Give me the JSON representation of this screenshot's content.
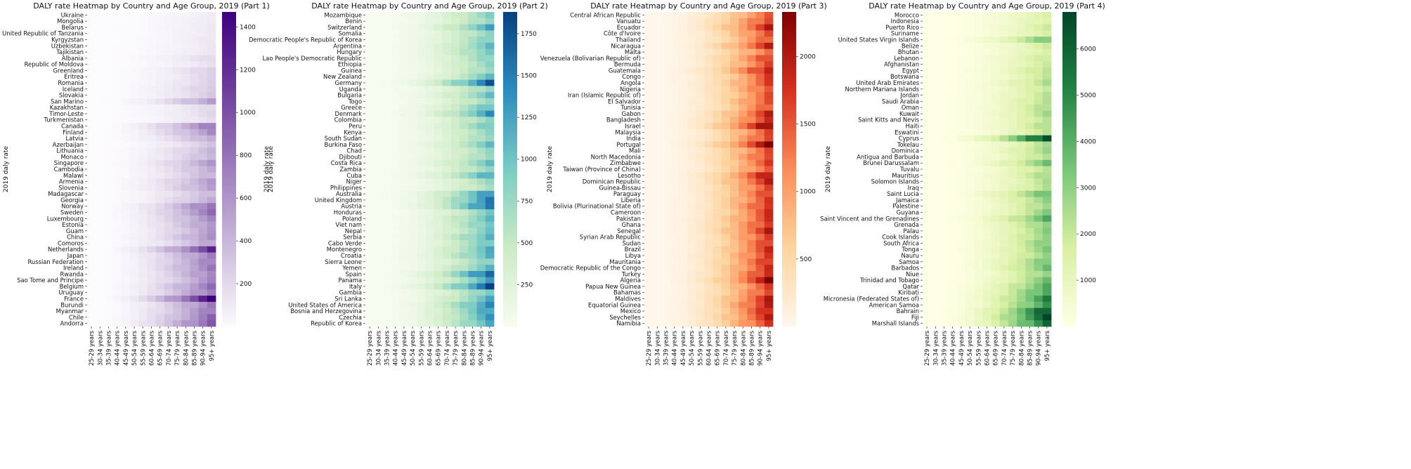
{
  "chart_data": [
    {
      "type": "heatmap",
      "title": "DALY rate Heatmap by Country and Age Group, 2019 (Part 1)",
      "ylabel": "2019 daly rate",
      "colorbar_label": "2019 daly rate",
      "palette": "purples",
      "colors": [
        "#fcfbfd",
        "#3f007d"
      ],
      "vmin": 0,
      "vmax": 1470,
      "colorbar_ticks": [
        "200",
        "400",
        "600",
        "800",
        "1000",
        "1200",
        "1400"
      ],
      "x": [
        "25-29 years",
        "30-34 years",
        "35-39 years",
        "40-44 years",
        "45-49 years",
        "50-54 years",
        "55-59 years",
        "60-64 years",
        "65-69 years",
        "70-74 years",
        "75-79 years",
        "80-84 years",
        "85-89 years",
        "90-94 years",
        "95+ years"
      ],
      "rows": [
        "Ukraine",
        "Mongolia",
        "Belarus",
        "United Republic of Tanzania",
        "Kyrgyzstan",
        "Uzbekistan",
        "Tajikistan",
        "Albania",
        "Republic of Moldova",
        "Greenland",
        "Eritrea",
        "Romania",
        "Iceland",
        "Slovakia",
        "San Marino",
        "Kazakhstan",
        "Timor-Leste",
        "Turkmenistan",
        "Canada",
        "Finland",
        "Latvia",
        "Azerbaijan",
        "Lithuania",
        "Monaco",
        "Singapore",
        "Cambodia",
        "Malawi",
        "Armenia",
        "Slovenia",
        "Madagascar",
        "Georgia",
        "Norway",
        "Sweden",
        "Luxembourg",
        "Estonia",
        "Guam",
        "China",
        "Comoros",
        "Netherlands",
        "Japan",
        "Russian Federation",
        "Ireland",
        "Rwanda",
        "Sao Tome and Principe",
        "Belgium",
        "Uruguay",
        "France",
        "Burundi",
        "Myanmar",
        "Chile",
        "Andorra"
      ],
      "row_max": [
        90,
        100,
        110,
        110,
        120,
        120,
        130,
        200,
        150,
        260,
        230,
        260,
        300,
        280,
        560,
        200,
        210,
        180,
        780,
        640,
        480,
        300,
        420,
        420,
        560,
        480,
        420,
        560,
        560,
        400,
        460,
        820,
        780,
        680,
        620,
        560,
        640,
        520,
        1200,
        760,
        740,
        760,
        700,
        640,
        840,
        780,
        1460,
        760,
        760,
        860,
        980
      ]
    },
    {
      "type": "heatmap",
      "title": "DALY rate Heatmap by Country and Age Group, 2019 (Part 2)",
      "ylabel": "2019 daly rate",
      "colorbar_label": "",
      "palette": "gnbu",
      "colors": [
        "#f7fcf0",
        "#ccebc5",
        "#7bccc4",
        "#2b8cbe",
        "#084081"
      ],
      "vmin": 0,
      "vmax": 1880,
      "colorbar_ticks": [
        "250",
        "500",
        "750",
        "1000",
        "1250",
        "1500",
        "1750"
      ],
      "x": [
        "25-29 years",
        "30-34 years",
        "35-39 years",
        "40-44 years",
        "45-49 years",
        "50-54 years",
        "55-59 years",
        "60-64 years",
        "65-69 years",
        "70-74 years",
        "75-79 years",
        "80-84 years",
        "85-89 years",
        "90-94 years",
        "95+ years"
      ],
      "rows": [
        "Mozambique",
        "Benin",
        "Switzerland",
        "Somalia",
        "Democratic People's Republic of Korea",
        "Argentina",
        "Hungary",
        "Lao People's Democratic Republic",
        "Ethiopia",
        "Guinea",
        "New Zealand",
        "Germany",
        "Uganda",
        "Bulgaria",
        "Togo",
        "Greece",
        "Denmark",
        "Colombia",
        "Peru",
        "Kenya",
        "South Sudan",
        "Burkina Faso",
        "Chad",
        "Djibouti",
        "Costa Rica",
        "Zambia",
        "Cuba",
        "Niger",
        "Philippines",
        "Australia",
        "United Kingdom",
        "Austria",
        "Honduras",
        "Poland",
        "Viet nam",
        "Nepal",
        "Serbia",
        "Cabo Verde",
        "Montenegro",
        "Croatia",
        "Sierra Leone",
        "Yemen",
        "Spain",
        "Panama",
        "Italy",
        "Gambia",
        "Sri Lanka",
        "United States of America",
        "Bosnia and Herzegovina",
        "Czechia",
        "Republic of Korea"
      ],
      "row_max": [
        900,
        820,
        1200,
        840,
        900,
        1050,
        1000,
        880,
        820,
        780,
        1000,
        1750,
        820,
        1000,
        780,
        1050,
        1350,
        850,
        1000,
        820,
        800,
        1000,
        800,
        800,
        1000,
        820,
        1200,
        760,
        700,
        1400,
        1500,
        1600,
        900,
        1100,
        1050,
        950,
        1150,
        1000,
        1150,
        1200,
        900,
        1100,
        1700,
        1200,
        1850,
        1000,
        1150,
        1450,
        1300,
        1300,
        1250
      ]
    },
    {
      "type": "heatmap",
      "title": "DALY rate Heatmap by Country and Age Group, 2019 (Part 3)",
      "ylabel": "2019 daly rate",
      "colorbar_label": "",
      "palette": "orrd",
      "colors": [
        "#fff7ec",
        "#fdd49e",
        "#fc8d59",
        "#d7301f",
        "#7f0000"
      ],
      "vmin": 0,
      "vmax": 2330,
      "colorbar_ticks": [
        "500",
        "1000",
        "1500",
        "2000"
      ],
      "x": [
        "25-29 years",
        "30-34 years",
        "35-39 years",
        "40-44 years",
        "45-49 years",
        "50-54 years",
        "55-59 years",
        "60-64 years",
        "65-69 years",
        "70-74 years",
        "75-79 years",
        "80-84 years",
        "85-89 years",
        "90-94 years",
        "95+ years"
      ],
      "rows": [
        "Central African Republic",
        "Vanuatu",
        "Ecuador",
        "Côte d'Ivoire",
        "Thailand",
        "Nicaragua",
        "Malta",
        "Venezuela (Bolivarian Republic of)",
        "Bermuda",
        "Guatemala",
        "Congo",
        "Angola",
        "Nigeria",
        "Iran (Islamic Republic of)",
        "El Salvador",
        "Tunisia",
        "Gabon",
        "Bangladesh",
        "Israel",
        "Malaysia",
        "India",
        "Portugal",
        "Mali",
        "North Macedonia",
        "Zimbabwe",
        "Taiwan (Province of China)",
        "Lesotho",
        "Dominican Republic",
        "Guinea-Bissau",
        "Paraguay",
        "Liberia",
        "Bolivia (Plurinational State of)",
        "Cameroon",
        "Pakistan",
        "Ghana",
        "Senegal",
        "Syrian Arab Republic",
        "Sudan",
        "Brazil",
        "Libya",
        "Mauritania",
        "Democratic Republic of the Congo",
        "Turkey",
        "Algeria",
        "Papua New Guinea",
        "Bahamas",
        "Maldives",
        "Equatorial Guinea",
        "Mexico",
        "Seychelles",
        "Namibia"
      ],
      "row_max": [
        1500,
        1700,
        1900,
        1600,
        1500,
        1900,
        1400,
        1700,
        1600,
        2000,
        1600,
        1700,
        1600,
        1500,
        1600,
        1500,
        1900,
        1900,
        2300,
        1600,
        1700,
        2250,
        1600,
        1700,
        1600,
        1500,
        2050,
        1900,
        1700,
        1700,
        1700,
        1800,
        1700,
        1800,
        1800,
        1900,
        1700,
        1700,
        1800,
        1800,
        1800,
        1800,
        1900,
        2150,
        1700,
        1700,
        1900,
        2000,
        1900,
        1900,
        1800
      ]
    },
    {
      "type": "heatmap",
      "title": "DALY rate Heatmap by Country and Age Group, 2019 (Part 4)",
      "ylabel": "2019 daly rate",
      "colorbar_label": "",
      "palette": "ylgn",
      "colors": [
        "#ffffe5",
        "#d9f0a3",
        "#78c679",
        "#238443",
        "#004529"
      ],
      "vmin": 0,
      "vmax": 6800,
      "colorbar_ticks": [
        "1000",
        "2000",
        "3000",
        "4000",
        "5000",
        "6000"
      ],
      "x": [
        "25-29 years",
        "30-34 years",
        "35-39 years",
        "40-44 years",
        "45-49 years",
        "50-54 years",
        "55-59 years",
        "60-64 years",
        "65-69 years",
        "70-74 years",
        "75-79 years",
        "80-84 years",
        "85-89 years",
        "90-94 years",
        "95+ years"
      ],
      "rows": [
        "Morocco",
        "Indonesia",
        "Puerto Rico",
        "Suriname",
        "United States Virgin Islands",
        "Belize",
        "Bhutan",
        "Lebanon",
        "Afghanistan",
        "Egypt",
        "Botswana",
        "United Arab Emirates",
        "Northern Mariana Islands",
        "Jordan",
        "Saudi Arabia",
        "Oman",
        "Kuwait",
        "Saint Kitts and Nevis",
        "Haiti",
        "Eswatini",
        "Cyprus",
        "Tokelau",
        "Dominica",
        "Antigua and Barbuda",
        "Brunei Darussalam",
        "Tuvalu",
        "Mauritius",
        "Solomon Islands",
        "Iraq",
        "Saint Lucia",
        "Jamaica",
        "Palestine",
        "Guyana",
        "Saint Vincent and the Grenadines",
        "Grenada",
        "Palau",
        "Cook Islands",
        "South Africa",
        "Tonga",
        "Nauru",
        "Samoa",
        "Barbados",
        "Niue",
        "Trinidad and Tobago",
        "Qatar",
        "Kiribati",
        "Micronesia (Federated States of)",
        "American Samoa",
        "Bahrain",
        "Fiji",
        "Marshall Islands"
      ],
      "row_max": [
        1600,
        1500,
        1800,
        1700,
        3400,
        1800,
        1600,
        2000,
        1900,
        2300,
        2000,
        2500,
        2100,
        2200,
        2400,
        2500,
        2600,
        2300,
        2500,
        2200,
        6800,
        2400,
        2800,
        2500,
        3400,
        2300,
        2600,
        2400,
        2500,
        3800,
        3000,
        2800,
        3000,
        4200,
        3200,
        3000,
        3000,
        3200,
        3200,
        3000,
        3500,
        3600,
        3000,
        3400,
        4200,
        4500,
        5000,
        4800,
        6400,
        6600,
        6000
      ]
    }
  ]
}
